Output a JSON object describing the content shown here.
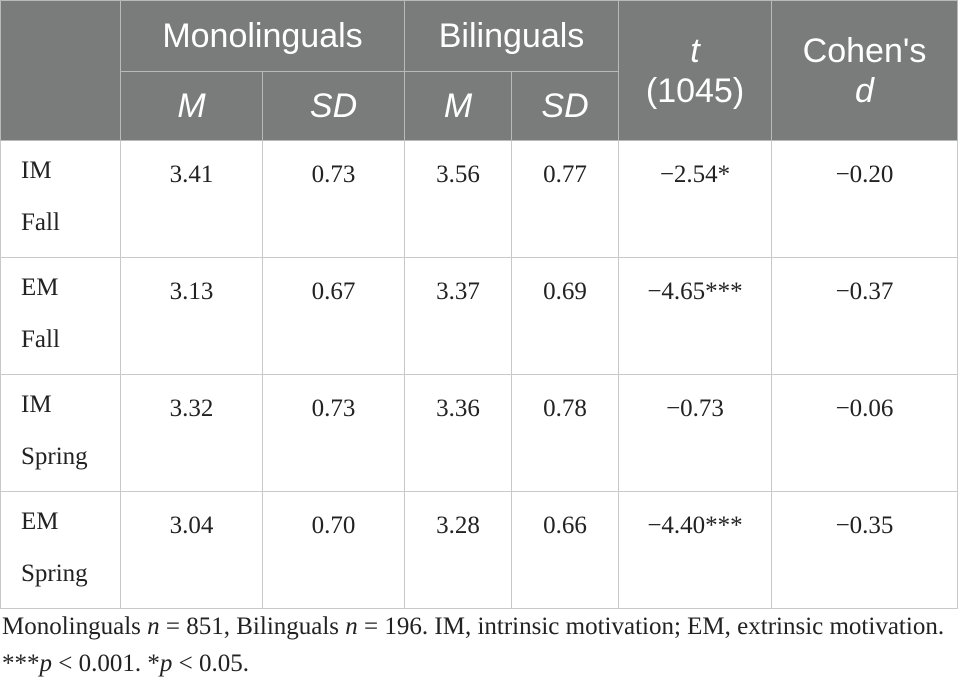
{
  "table": {
    "headers": {
      "group1": "Monolinguals",
      "group2": "Bilinguals",
      "t_stat": "t",
      "t_df": "(1045)",
      "cohen_line1": "Cohen's",
      "cohen_line2": "d",
      "m": "M",
      "sd": "SD"
    },
    "rows": [
      {
        "label_line1": "IM",
        "label_line2": "Fall",
        "mono_m": "3.41",
        "mono_sd": "0.73",
        "bi_m": "3.56",
        "bi_sd": "0.77",
        "t": "−2.54*",
        "d": "−0.20"
      },
      {
        "label_line1": "EM",
        "label_line2": "Fall",
        "mono_m": "3.13",
        "mono_sd": "0.67",
        "bi_m": "3.37",
        "bi_sd": "0.69",
        "t": "−4.65***",
        "d": "−0.37"
      },
      {
        "label_line1": "IM",
        "label_line2": "Spring",
        "mono_m": "3.32",
        "mono_sd": "0.73",
        "bi_m": "3.36",
        "bi_sd": "0.78",
        "t": "−0.73",
        "d": "−0.06"
      },
      {
        "label_line1": "EM",
        "label_line2": "Spring",
        "mono_m": "3.04",
        "mono_sd": "0.70",
        "bi_m": "3.28",
        "bi_sd": "0.66",
        "t": "−4.40***",
        "d": "−0.35"
      }
    ]
  },
  "note": {
    "part1": "Monolinguals ",
    "n1_var": "n",
    "part2": " = 851, Bilinguals ",
    "n2_var": "n",
    "part3": " = 196. IM, intrinsic motivation; EM, extrinsic motivation. ***",
    "p1_var": "p",
    "part4": " < 0.001. *",
    "p2_var": "p",
    "part5": " < 0.05."
  }
}
